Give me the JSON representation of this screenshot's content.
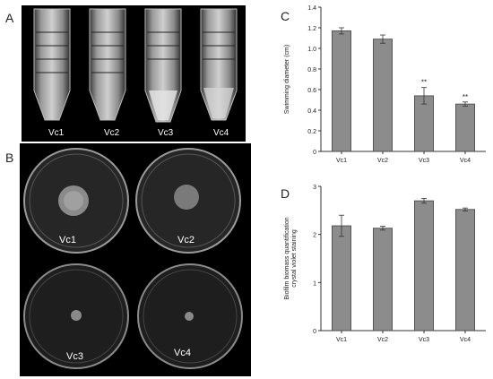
{
  "panels": {
    "a": "A",
    "b": "B",
    "c": "C",
    "d": "D"
  },
  "tubes": [
    "Vc1",
    "Vc2",
    "Vc3",
    "Vc4"
  ],
  "plates": [
    "Vc1",
    "Vc2",
    "Vc3",
    "Vc4"
  ],
  "colors": {
    "bar": "#8c8c8c",
    "bar_stroke": "#444444",
    "axis": "#333333",
    "photo_bg": "#000000"
  },
  "chart_data": [
    {
      "type": "bar",
      "panel": "C",
      "categories": [
        "Vc1",
        "Vc2",
        "Vc3",
        "Vc4"
      ],
      "values": [
        1.17,
        1.09,
        0.54,
        0.46
      ],
      "errors": [
        0.03,
        0.04,
        0.08,
        0.02
      ],
      "significance": [
        "",
        "",
        "**",
        "**"
      ],
      "ylabel": "Swimming diameter (cm)",
      "ylabel_lines": [
        "Swimming diameter (cm)"
      ],
      "ylim": [
        0,
        1.4
      ],
      "yticks": [
        "0",
        "0.2",
        "0.4",
        "0.6",
        "0.8",
        "1.0",
        "1.2",
        "1.4"
      ],
      "ytick_values": [
        0,
        0.2,
        0.4,
        0.6,
        0.8,
        1.0,
        1.2,
        1.4
      ]
    },
    {
      "type": "bar",
      "panel": "D",
      "categories": [
        "Vc1",
        "Vc2",
        "Vc3",
        "Vc4"
      ],
      "values": [
        2.18,
        2.13,
        2.7,
        2.52
      ],
      "errors": [
        0.22,
        0.04,
        0.05,
        0.03
      ],
      "significance": [
        "",
        "",
        "",
        ""
      ],
      "ylabel": "Biofilm biomass quantification crystal violet staining",
      "ylabel_lines": [
        "Biofilm biomass quantification",
        "crystal violet staining"
      ],
      "ylim": [
        0,
        3
      ],
      "yticks": [
        "0",
        "1",
        "2",
        "3"
      ],
      "ytick_values": [
        0,
        1,
        2,
        3
      ]
    }
  ]
}
